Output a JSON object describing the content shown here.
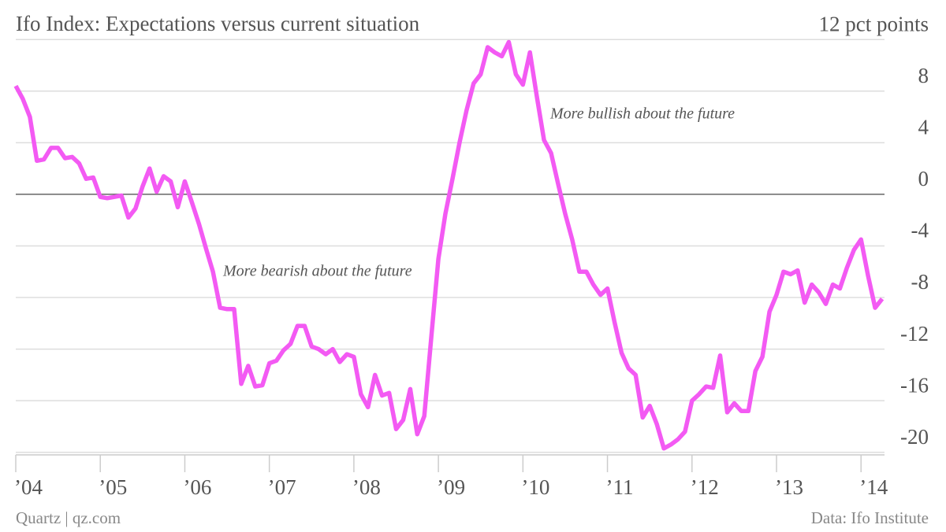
{
  "chart_data": {
    "type": "line",
    "title": "Ifo Index: Expectations versus current situation",
    "annotations": [
      "More bullish about the future",
      "More bearish about the future"
    ],
    "credit": "Quartz | qz.com",
    "source": "Data: Ifo Institute",
    "color": "#f35af3",
    "grid": true,
    "x": [
      2004,
      2004.083,
      2004.167,
      2004.25,
      2004.333,
      2004.417,
      2004.5,
      2004.583,
      2004.667,
      2004.75,
      2004.833,
      2004.917,
      2005,
      2005.083,
      2005.167,
      2005.25,
      2005.333,
      2005.417,
      2005.5,
      2005.583,
      2005.667,
      2005.75,
      2005.833,
      2005.917,
      2006,
      2006.083,
      2006.167,
      2006.25,
      2006.333,
      2006.417,
      2006.5,
      2006.583,
      2006.667,
      2006.75,
      2006.833,
      2006.917,
      2007,
      2007.083,
      2007.167,
      2007.25,
      2007.333,
      2007.417,
      2007.5,
      2007.583,
      2007.667,
      2007.75,
      2007.833,
      2007.917,
      2008,
      2008.083,
      2008.167,
      2008.25,
      2008.333,
      2008.417,
      2008.5,
      2008.583,
      2008.667,
      2008.75,
      2008.833,
      2008.917,
      2009,
      2009.083,
      2009.167,
      2009.25,
      2009.333,
      2009.417,
      2009.5,
      2009.583,
      2009.667,
      2009.75,
      2009.833,
      2009.917,
      2010,
      2010.083,
      2010.167,
      2010.25,
      2010.333,
      2010.417,
      2010.5,
      2010.583,
      2010.667,
      2010.75,
      2010.833,
      2010.917,
      2011,
      2011.083,
      2011.167,
      2011.25,
      2011.333,
      2011.417,
      2011.5,
      2011.583,
      2011.667,
      2011.75,
      2011.833,
      2011.917,
      2012,
      2012.083,
      2012.167,
      2012.25,
      2012.333,
      2012.417,
      2012.5,
      2012.583,
      2012.667,
      2012.75,
      2012.833,
      2012.917,
      2013,
      2013.083,
      2013.167,
      2013.25,
      2013.333,
      2013.417,
      2013.5,
      2013.583,
      2013.667,
      2013.75,
      2013.833,
      2013.917,
      2014,
      2014.083,
      2014.167,
      2014.25
    ],
    "values": [
      8.4,
      7.4,
      6.0,
      2.6,
      2.7,
      3.6,
      3.6,
      2.8,
      2.9,
      2.4,
      1.2,
      1.3,
      -0.2,
      -0.3,
      -0.2,
      -0.1,
      -1.8,
      -1.1,
      0.6,
      2.0,
      0.2,
      1.4,
      1.0,
      -1.0,
      1.0,
      -0.6,
      -2.3,
      -4.2,
      -6.0,
      -8.8,
      -8.9,
      -8.9,
      -14.7,
      -13.3,
      -14.9,
      -14.8,
      -13.1,
      -12.9,
      -12.1,
      -11.6,
      -10.2,
      -10.2,
      -11.8,
      -12.0,
      -12.4,
      -12.0,
      -13.0,
      -12.4,
      -12.6,
      -15.5,
      -16.5,
      -14.0,
      -15.6,
      -15.4,
      -18.2,
      -17.5,
      -15.1,
      -18.6,
      -17.2,
      -11.0,
      -5.0,
      -1.5,
      1.2,
      4.0,
      6.5,
      8.6,
      9.3,
      11.4,
      11.0,
      10.7,
      11.8,
      9.3,
      8.5,
      11.0,
      7.5,
      4.2,
      3.2,
      0.8,
      -1.5,
      -3.5,
      -6.0,
      -6.0,
      -7.0,
      -7.8,
      -7.3,
      -9.9,
      -12.3,
      -13.5,
      -14.0,
      -17.3,
      -16.4,
      -17.8,
      -19.7,
      -19.4,
      -19.0,
      -18.4,
      -16.0,
      -15.5,
      -14.9,
      -15.0,
      -12.5,
      -16.9,
      -16.2,
      -16.8,
      -16.8,
      -13.7,
      -12.6,
      -9.1,
      -7.8,
      -6.0,
      -6.2,
      -5.9,
      -8.4,
      -7.0,
      -7.6,
      -8.5,
      -7.0,
      -7.3,
      -5.7,
      -4.3,
      -3.5,
      -6.3,
      -8.8,
      -8.1
    ],
    "xlim": [
      2004,
      2014.8
    ],
    "xticks": [
      {
        "value": 2004,
        "label": "’04"
      },
      {
        "value": 2005,
        "label": "’05"
      },
      {
        "value": 2006,
        "label": "’06"
      },
      {
        "value": 2007,
        "label": "’07"
      },
      {
        "value": 2008,
        "label": "’08"
      },
      {
        "value": 2009,
        "label": "’09"
      },
      {
        "value": 2010,
        "label": "’10"
      },
      {
        "value": 2011,
        "label": "’11"
      },
      {
        "value": 2012,
        "label": "’12"
      },
      {
        "value": 2013,
        "label": "’13"
      },
      {
        "value": 2014,
        "label": "’14"
      }
    ],
    "ylim": [
      -20.2,
      12.5
    ],
    "yticks": [
      {
        "value": 12,
        "label": "12 pct points"
      },
      8,
      4,
      0,
      -4,
      -8,
      -12,
      -16,
      -20
    ]
  }
}
